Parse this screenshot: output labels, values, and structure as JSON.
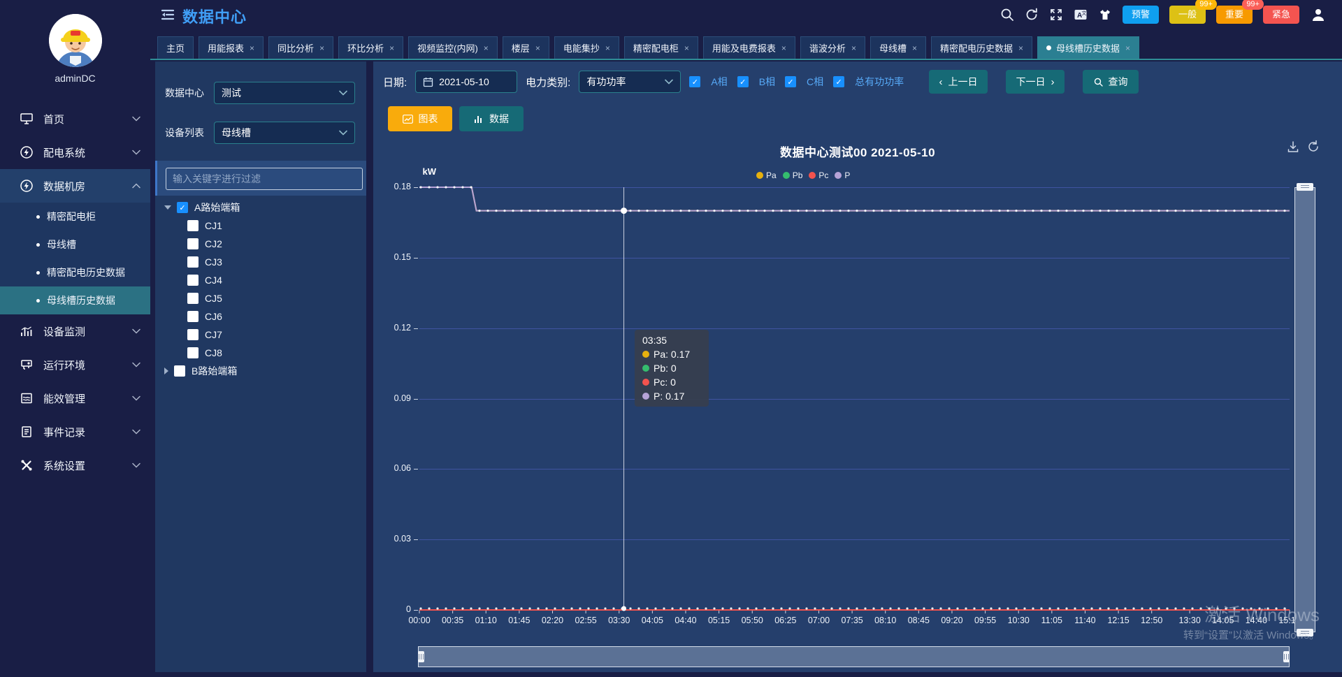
{
  "header": {
    "title": "数据中心",
    "icons": [
      "search-icon",
      "refresh-icon",
      "fullscreen-icon",
      "translate-icon",
      "theme-icon"
    ],
    "alert_buttons": [
      {
        "label": "预警",
        "color": "#0f9ff0",
        "badge": null,
        "badge_color": null
      },
      {
        "label": "一般",
        "color": "#ddc115",
        "badge": "99+",
        "badge_color": "#fcb708"
      },
      {
        "label": "重要",
        "color": "#f79a00",
        "badge": "99+",
        "badge_color": "#fa5f58"
      },
      {
        "label": "紧急",
        "color": "#f45450",
        "badge": null,
        "badge_color": null
      }
    ]
  },
  "user": {
    "name": "adminDC"
  },
  "tabs": [
    {
      "label": "主页",
      "closable": false,
      "active": false
    },
    {
      "label": "用能报表",
      "closable": true,
      "active": false
    },
    {
      "label": "同比分析",
      "closable": true,
      "active": false
    },
    {
      "label": "环比分析",
      "closable": true,
      "active": false
    },
    {
      "label": "视频监控(内网)",
      "closable": true,
      "active": false
    },
    {
      "label": "楼层",
      "closable": true,
      "active": false
    },
    {
      "label": "电能集抄",
      "closable": true,
      "active": false
    },
    {
      "label": "精密配电柜",
      "closable": true,
      "active": false
    },
    {
      "label": "用能及电费报表",
      "closable": true,
      "active": false
    },
    {
      "label": "谐波分析",
      "closable": true,
      "active": false
    },
    {
      "label": "母线槽",
      "closable": true,
      "active": false
    },
    {
      "label": "精密配电历史数据",
      "closable": true,
      "active": false
    },
    {
      "label": "母线槽历史数据",
      "closable": true,
      "active": true
    }
  ],
  "sidebar_menu": [
    {
      "label": "首页",
      "icon": "home-icon",
      "expanded": false
    },
    {
      "label": "配电系统",
      "icon": "power-icon",
      "expanded": false
    },
    {
      "label": "数据机房",
      "icon": "datacenter-icon",
      "expanded": true,
      "children": [
        {
          "label": "精密配电柜",
          "active": false
        },
        {
          "label": "母线槽",
          "active": false
        },
        {
          "label": "精密配电历史数据",
          "active": false
        },
        {
          "label": "母线槽历史数据",
          "active": true
        }
      ]
    },
    {
      "label": "设备监测",
      "icon": "device-icon",
      "expanded": false
    },
    {
      "label": "运行环境",
      "icon": "environment-icon",
      "expanded": false
    },
    {
      "label": "能效管理",
      "icon": "energy-icon",
      "expanded": false
    },
    {
      "label": "事件记录",
      "icon": "events-icon",
      "expanded": false
    },
    {
      "label": "系统设置",
      "icon": "settings-icon",
      "expanded": false
    }
  ],
  "filter_panel": {
    "datacenter_label": "数据中心",
    "datacenter_value": "测试",
    "device_label": "设备列表",
    "device_value": "母线槽",
    "search_placeholder": "输入关键字进行过滤",
    "tree": [
      {
        "label": "A路始端箱",
        "checked": true,
        "expanded": true,
        "children": [
          {
            "label": "CJ1",
            "checked": false
          },
          {
            "label": "CJ2",
            "checked": false
          },
          {
            "label": "CJ3",
            "checked": false
          },
          {
            "label": "CJ4",
            "checked": false
          },
          {
            "label": "CJ5",
            "checked": false
          },
          {
            "label": "CJ6",
            "checked": false
          },
          {
            "label": "CJ7",
            "checked": false
          },
          {
            "label": "CJ8",
            "checked": false
          }
        ]
      },
      {
        "label": "B路始端箱",
        "checked": false,
        "expanded": false,
        "children": []
      }
    ]
  },
  "toolbar": {
    "date_label": "日期:",
    "date_value": "2021-05-10",
    "type_label": "电力类别:",
    "type_value": "有功功率",
    "checkboxes": [
      {
        "label": "A相",
        "checked": true
      },
      {
        "label": "B相",
        "checked": true
      },
      {
        "label": "C相",
        "checked": true
      },
      {
        "label": "总有功功率",
        "checked": true
      }
    ],
    "prev_label": "上一日",
    "next_label": "下一日",
    "query_label": "查询",
    "chart_btn": "图表",
    "data_btn": "数据",
    "chart_btn_color": "#f9ab0c",
    "data_btn_color": "#166a76"
  },
  "chart_data": {
    "type": "line",
    "title": "数据中心测试00  2021-05-10",
    "unit": "kW",
    "ylim": [
      0,
      0.18
    ],
    "yticks": [
      "0",
      "0.03",
      "0.06",
      "0.09",
      "0.12",
      "0.15",
      "0.18"
    ],
    "x_labels": [
      "00:00",
      "00:35",
      "01:10",
      "01:45",
      "02:20",
      "02:55",
      "03:30",
      "04:05",
      "04:40",
      "05:15",
      "05:50",
      "06:25",
      "07:00",
      "07:35",
      "08:10",
      "08:45",
      "09:20",
      "09:55",
      "10:30",
      "11:05",
      "11:40",
      "12:15",
      "12:50",
      "13:30",
      "14:05",
      "14:40",
      "15:15"
    ],
    "grid": true,
    "legend_position": "top",
    "series": [
      {
        "name": "Pa",
        "color": "#e6b00e",
        "points": [
          [
            "00:00",
            0.18
          ],
          [
            "00:55",
            0.18
          ],
          [
            "01:00",
            0.17
          ],
          [
            "15:15",
            0.17
          ]
        ]
      },
      {
        "name": "Pb",
        "color": "#35bd6e",
        "points": [
          [
            "00:00",
            0
          ],
          [
            "15:15",
            0
          ]
        ]
      },
      {
        "name": "Pc",
        "color": "#f4534e",
        "points": [
          [
            "00:00",
            0
          ],
          [
            "15:15",
            0
          ]
        ]
      },
      {
        "name": "P",
        "color": "#b6a3d8",
        "points": [
          [
            "00:00",
            0.18
          ],
          [
            "00:55",
            0.18
          ],
          [
            "01:00",
            0.17
          ],
          [
            "15:15",
            0.17
          ]
        ]
      }
    ],
    "tooltip": {
      "time": "03:35",
      "rows": [
        {
          "name": "Pa",
          "value": "0.17",
          "color": "#e6b00e"
        },
        {
          "name": "Pb",
          "value": "0",
          "color": "#35bd6e"
        },
        {
          "name": "Pc",
          "value": "0",
          "color": "#f4534e"
        },
        {
          "name": "P",
          "value": "0.17",
          "color": "#b6a3d8"
        }
      ]
    }
  },
  "watermark": {
    "line1": "激活 Windows",
    "line2": "转到“设置”以激活 Windows。"
  }
}
